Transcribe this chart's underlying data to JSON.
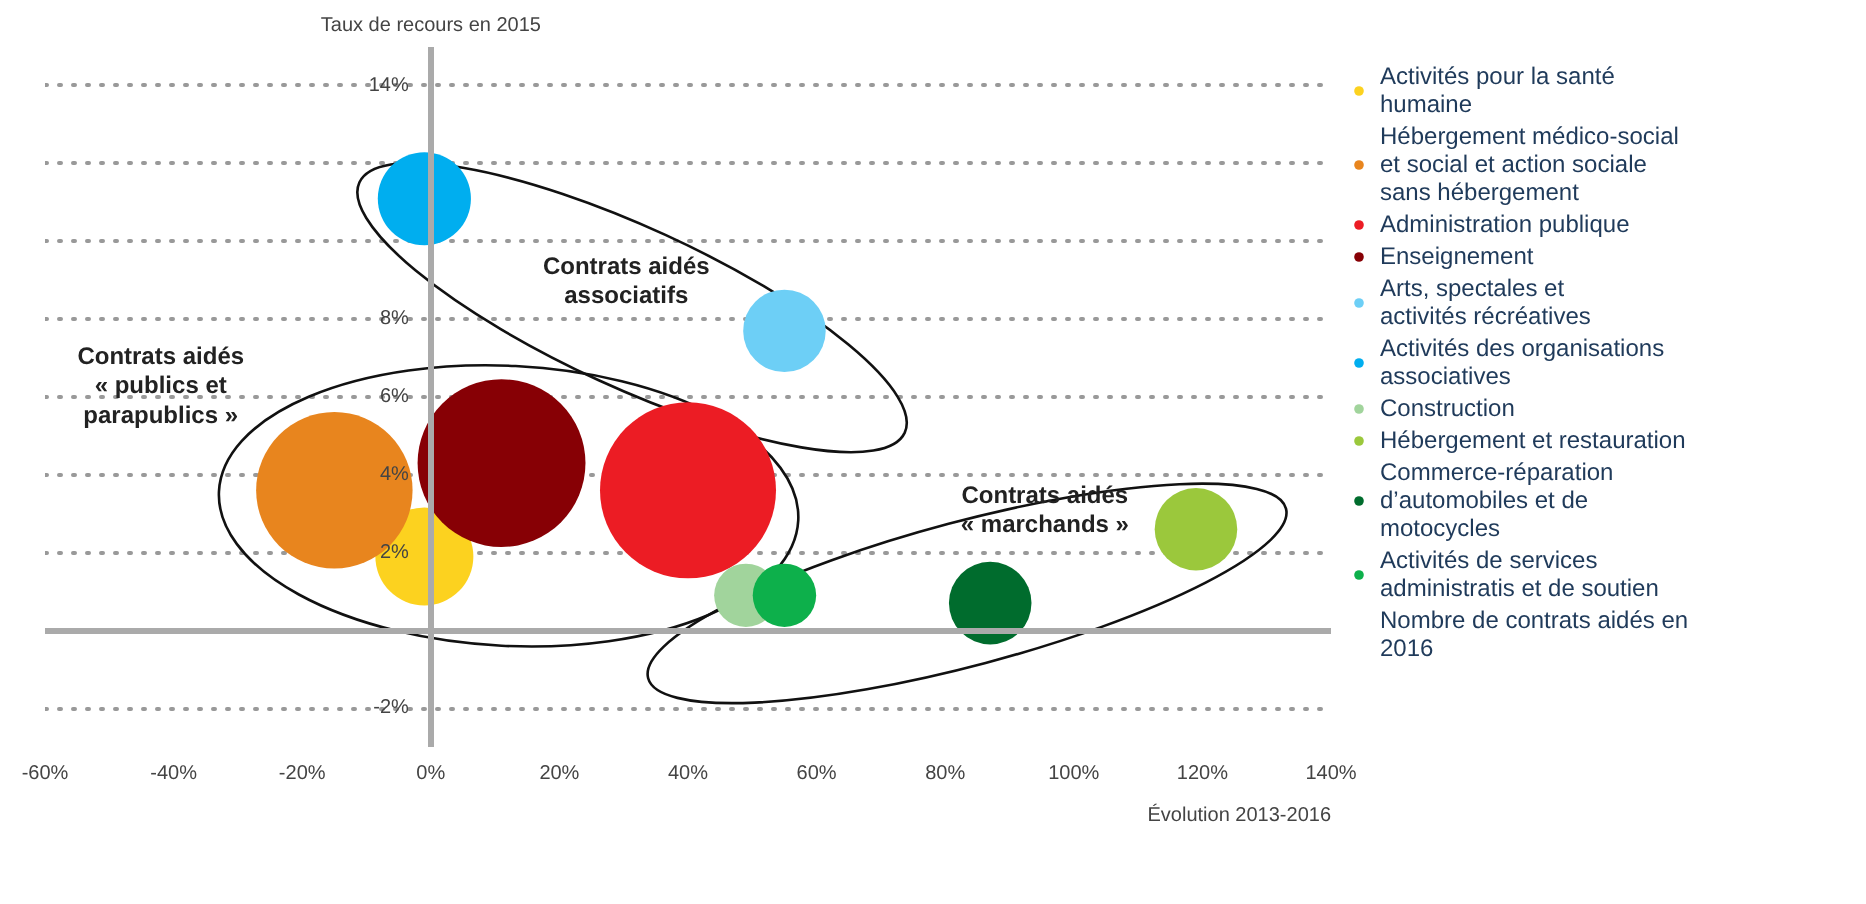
{
  "chart_data": {
    "type": "bubble",
    "xlabel": "Évolution 2013-2016",
    "ylabel": "Taux de recours en 2015",
    "xlim": [
      -60,
      140
    ],
    "xticks": [
      {
        "value": -60,
        "label": "-60%"
      },
      {
        "value": -40,
        "label": "-40%"
      },
      {
        "value": -20,
        "label": "-20%"
      },
      {
        "value": 0,
        "label": "0%"
      },
      {
        "value": 20,
        "label": "20%"
      },
      {
        "value": 40,
        "label": "40%"
      },
      {
        "value": 60,
        "label": "60%"
      },
      {
        "value": 80,
        "label": "80%"
      },
      {
        "value": 100,
        "label": "100%"
      },
      {
        "value": 120,
        "label": "120%"
      },
      {
        "value": 140,
        "label": "140%"
      }
    ],
    "ylim": [
      -3,
      15
    ],
    "yticks": [
      {
        "value": -2,
        "label": "-2%"
      },
      {
        "value": 0,
        "label": null
      },
      {
        "value": 2,
        "label": "2%"
      },
      {
        "value": 4,
        "label": "4%"
      },
      {
        "value": 6,
        "label": "6%"
      },
      {
        "value": 8,
        "label": "8%"
      },
      {
        "value": 10,
        "label": null
      },
      {
        "value": 12,
        "label": null
      },
      {
        "value": 14,
        "label": "14%"
      }
    ],
    "grid": "y",
    "legend": "right",
    "marker": "circle",
    "series": [
      {
        "name": "Activités pour la santé humaine",
        "color": "#fcd21f",
        "x": [
          -1
        ],
        "values": [
          1.9
        ],
        "sizes": [
          0.31
        ]
      },
      {
        "name": "Hébergement médico-social et social et action sociale sans hébergement",
        "color": "#e8851e",
        "x": [
          -15
        ],
        "values": [
          3.6
        ],
        "sizes": [
          0.79
        ]
      },
      {
        "name": "Administration publique",
        "color": "#ec1c24",
        "x": [
          40
        ],
        "values": [
          3.6
        ],
        "sizes": [
          1
        ]
      },
      {
        "name": "Enseignement",
        "color": "#870005",
        "x": [
          11
        ],
        "values": [
          4.3
        ],
        "sizes": [
          0.91
        ]
      },
      {
        "name": "Arts, spectales et activités récréatives",
        "color": "#6dcff6",
        "x": [
          55
        ],
        "values": [
          7.7
        ],
        "sizes": [
          0.22
        ]
      },
      {
        "name": "Activités des organisations associatives",
        "color": "#00aeef",
        "x": [
          -1
        ],
        "values": [
          11.1
        ],
        "sizes": [
          0.28
        ]
      },
      {
        "name": "Construction",
        "color": "#a1d49c",
        "x": [
          49
        ],
        "values": [
          0.9
        ],
        "sizes": [
          0.13
        ]
      },
      {
        "name": "Hébergement et restauration",
        "color": "#9bc83c",
        "x": [
          119
        ],
        "values": [
          2.6
        ],
        "sizes": [
          0.22
        ]
      },
      {
        "name": "Commerce-réparation d’automobiles et de motocycles",
        "color": "#006c2d",
        "x": [
          87
        ],
        "values": [
          0.7
        ],
        "sizes": [
          0.22
        ]
      },
      {
        "name": "Activités de services administratis et de soutien",
        "color": "#0db04b",
        "x": [
          55
        ],
        "values": [
          0.9
        ],
        "sizes": [
          0.13
        ]
      }
    ],
    "annotations": [
      "Contrats aidés associatifs",
      "Contrats aidés « publics et parapublics »",
      "Contrats aidés « marchands »",
      "Nombre de contrats aidés en 2016"
    ]
  }
}
